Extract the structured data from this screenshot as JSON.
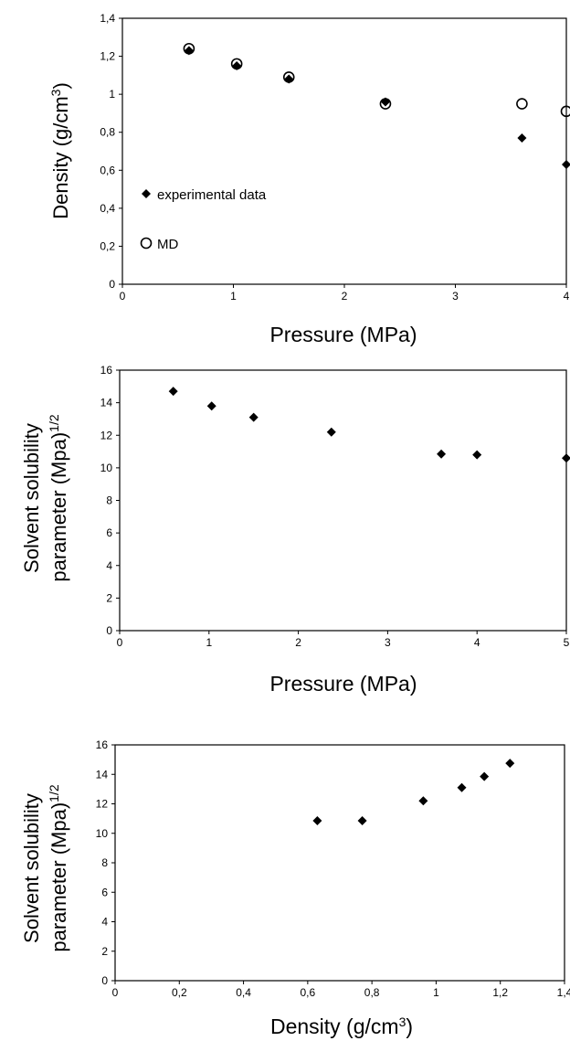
{
  "chart_data": [
    {
      "type": "scatter",
      "xlabel": "Pressure (MPa)",
      "ylabel": "Density (g/cm",
      "ylabel_sup": "3",
      "ylabel_end": ")",
      "xlim": [
        0,
        4
      ],
      "ylim": [
        0,
        1.4
      ],
      "xticks": [
        "0",
        "1",
        "2",
        "3",
        "4"
      ],
      "yticks": [
        "0",
        "0,2",
        "0,4",
        "0,6",
        "0,8",
        "1",
        "1,2",
        "1,4"
      ],
      "legend_position": "left",
      "series": [
        {
          "name": "experimental data",
          "marker": "diamond",
          "x": [
            0.6,
            1.03,
            1.5,
            2.37,
            3.6,
            4.0
          ],
          "y": [
            1.23,
            1.15,
            1.08,
            0.96,
            0.77,
            0.63
          ]
        },
        {
          "name": "MD",
          "marker": "open-circle",
          "x": [
            0.6,
            1.03,
            1.5,
            2.37,
            3.6,
            4.0
          ],
          "y": [
            1.24,
            1.16,
            1.09,
            0.95,
            0.95,
            0.91
          ]
        }
      ]
    },
    {
      "type": "scatter",
      "xlabel": "Pressure (MPa)",
      "ylabel_line1": "Solvent solubility",
      "ylabel_line2": "parameter (Mpa)",
      "ylabel_sup": "1/2",
      "xlim": [
        0,
        5
      ],
      "ylim": [
        0,
        16
      ],
      "xticks": [
        "0",
        "1",
        "2",
        "3",
        "4",
        "5"
      ],
      "yticks": [
        "0",
        "2",
        "4",
        "6",
        "8",
        "10",
        "12",
        "14",
        "16"
      ],
      "series": [
        {
          "name": "",
          "marker": "diamond",
          "x": [
            0.6,
            1.03,
            1.5,
            2.37,
            3.6,
            4.0,
            5.0
          ],
          "y": [
            14.7,
            13.8,
            13.1,
            12.2,
            10.85,
            10.8,
            10.6
          ]
        }
      ]
    },
    {
      "type": "scatter",
      "xlabel": "Density (g/cm",
      "xlabel_sup": "3",
      "xlabel_end": ")",
      "ylabel_line1": "Solvent solubility",
      "ylabel_line2": "parameter (Mpa)",
      "ylabel_sup": "1/2",
      "xlim": [
        0,
        1.4
      ],
      "ylim": [
        0,
        16
      ],
      "xticks": [
        "0",
        "0,2",
        "0,4",
        "0,6",
        "0,8",
        "1",
        "1,2",
        "1,4"
      ],
      "yticks": [
        "0",
        "2",
        "4",
        "6",
        "8",
        "10",
        "12",
        "14",
        "16"
      ],
      "series": [
        {
          "name": "",
          "marker": "diamond",
          "x": [
            0.63,
            0.77,
            0.96,
            1.08,
            1.15,
            1.23
          ],
          "y": [
            10.85,
            10.85,
            12.2,
            13.1,
            13.85,
            14.75
          ]
        }
      ]
    }
  ]
}
